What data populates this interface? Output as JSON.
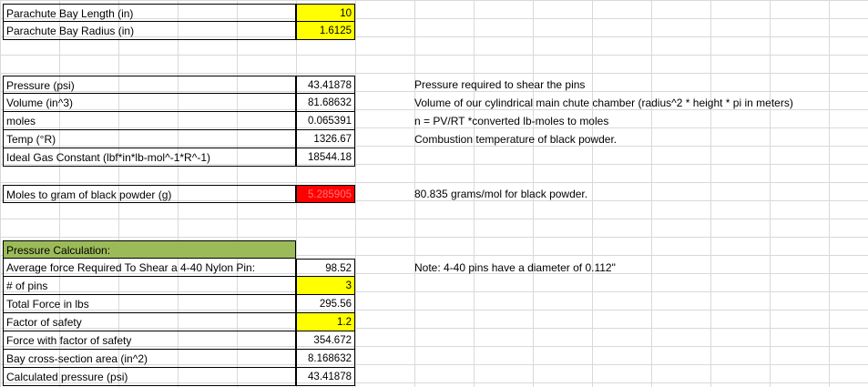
{
  "bay": {
    "length_label": "Parachute Bay Length (in)",
    "length_value": "10",
    "radius_label": "Parachute Bay Radius (in)",
    "radius_value": "1.6125"
  },
  "gas": {
    "pressure_label": "Pressure (psi)",
    "pressure_value": "43.41878",
    "volume_label": "Volume (in^3)",
    "volume_value": "81.68632",
    "moles_label": "moles",
    "moles_value": "0.065391",
    "temp_label": "Temp (°R)",
    "temp_value": "1326.67",
    "gas_const_label": "Ideal Gas Constant (lbf*in*lb-mol^-1*R^-1)",
    "gas_const_value": "18544.18"
  },
  "notes": {
    "pressure": "Pressure required to shear the pins",
    "volume": "Volume of our cylindrical main chute chamber (radius^2 * height * pi in meters)",
    "moles": "n = PV/RT  *converted lb-moles to moles",
    "temp": "Combustion temperature of black powder.",
    "grams": "80.835 grams/mol for black powder.",
    "pins": "Note: 4-40 pins have a diameter of 0.112\""
  },
  "grams": {
    "label": "Moles to gram of black powder (g)",
    "value": "5.285905"
  },
  "calc": {
    "header": "Pressure Calculation:",
    "rows": [
      {
        "label": "Average force Required To Shear a 4-40 Nylon Pin:",
        "value": "98.52"
      },
      {
        "label": "# of pins",
        "value": "3"
      },
      {
        "label": "Total Force in lbs",
        "value": "295.56"
      },
      {
        "label": "Factor of safety",
        "value": "1.2"
      },
      {
        "label": "Force with factor of safety",
        "value": "354.672"
      },
      {
        "label": "Bay cross-section area (in^2)",
        "value": "8.168632"
      },
      {
        "label": "Calculated pressure (psi)",
        "value": "43.41878"
      }
    ]
  }
}
